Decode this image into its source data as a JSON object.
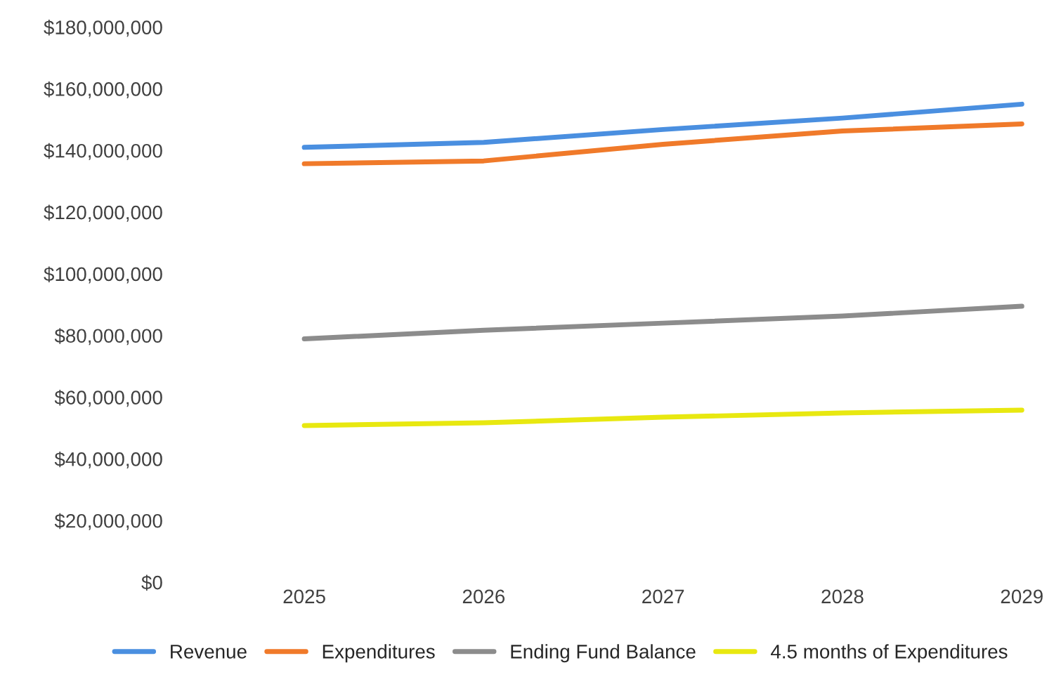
{
  "chart_data": {
    "type": "line",
    "categories": [
      "2025",
      "2026",
      "2027",
      "2028",
      "2029"
    ],
    "series": [
      {
        "name": "Revenue",
        "color": "#4a8fe0",
        "values": [
          141000000,
          142600000,
          146800000,
          150500000,
          155000000
        ]
      },
      {
        "name": "Expenditures",
        "color": "#f07a2a",
        "values": [
          135700000,
          136600000,
          142000000,
          146300000,
          148600000
        ]
      },
      {
        "name": "Ending Fund Balance",
        "color": "#8c8c8c",
        "values": [
          78900000,
          81700000,
          84000000,
          86300000,
          89500000
        ]
      },
      {
        "name": "4.5 months of Expenditures",
        "color": "#e8e810",
        "values": [
          50800000,
          51700000,
          53500000,
          54900000,
          55800000
        ]
      }
    ],
    "ylim": [
      0,
      180000000
    ],
    "yticks": [
      {
        "value": 0,
        "label": "$0"
      },
      {
        "value": 20000000,
        "label": "$20,000,000"
      },
      {
        "value": 40000000,
        "label": "$40,000,000"
      },
      {
        "value": 60000000,
        "label": "$60,000,000"
      },
      {
        "value": 80000000,
        "label": "$80,000,000"
      },
      {
        "value": 100000000,
        "label": "$100,000,000"
      },
      {
        "value": 120000000,
        "label": "$120,000,000"
      },
      {
        "value": 140000000,
        "label": "$140,000,000"
      },
      {
        "value": 160000000,
        "label": "$160,000,000"
      },
      {
        "value": 180000000,
        "label": "$180,000,000"
      }
    ],
    "grid": false,
    "legend": "bottom",
    "marker": "none",
    "line_style": "solid"
  }
}
